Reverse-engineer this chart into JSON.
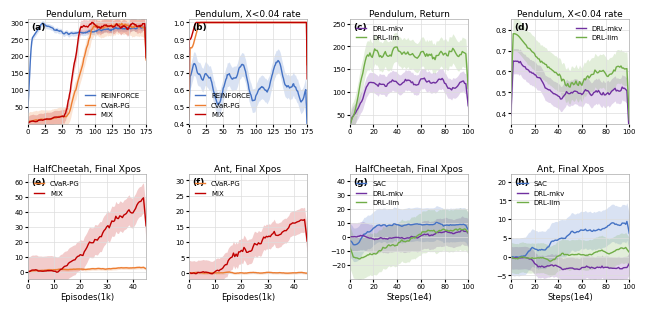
{
  "panels": {
    "a": {
      "title": "Pendulum, Return",
      "label": "(a)",
      "xlabel": "",
      "xlim": [
        0,
        175
      ],
      "ylim": [
        0,
        310
      ],
      "yticks": [
        50,
        100,
        150,
        200,
        250,
        300
      ],
      "xticks": [
        0,
        25,
        50,
        75,
        100,
        125,
        150,
        175
      ]
    },
    "b": {
      "title": "Pendulum, X<0.04 rate",
      "label": "(b)",
      "xlabel": "",
      "xlim": [
        0,
        175
      ],
      "ylim": [
        0.4,
        1.02
      ],
      "yticks": [
        0.4,
        0.5,
        0.6,
        0.7,
        0.8,
        0.9,
        1.0
      ],
      "xticks": [
        0,
        25,
        50,
        75,
        100,
        125,
        150,
        175
      ]
    },
    "c": {
      "title": "Pendulum, Return",
      "label": "(c)",
      "xlabel": "",
      "xlim": [
        0,
        100
      ],
      "ylim": [
        30,
        260
      ],
      "yticks": [
        50,
        100,
        150,
        200,
        250
      ],
      "xticks": [
        0,
        20,
        40,
        60,
        80,
        100
      ]
    },
    "d": {
      "title": "Pendulum, X<0.04 rate",
      "label": "(d)",
      "xlabel": "",
      "xlim": [
        0,
        100
      ],
      "ylim": [
        0.35,
        0.85
      ],
      "yticks": [
        0.4,
        0.5,
        0.6,
        0.7,
        0.8
      ],
      "xticks": [
        0,
        20,
        40,
        60,
        80,
        100
      ]
    },
    "e": {
      "title": "HalfCheetah, Final Xpos",
      "label": "(e)",
      "xlabel": "Episodes(1k)",
      "xlim": [
        0,
        45
      ],
      "ylim": [
        -5,
        65
      ],
      "yticks": [
        0,
        10,
        20,
        30,
        40,
        50,
        60
      ],
      "xticks": [
        0,
        10,
        20,
        30,
        40
      ]
    },
    "f": {
      "title": "Ant, Final Xpos",
      "label": "(f)",
      "xlabel": "Episodes(1k)",
      "xlim": [
        0,
        45
      ],
      "ylim": [
        -2,
        32
      ],
      "yticks": [
        0,
        5,
        10,
        15,
        20,
        25,
        30
      ],
      "xticks": [
        0,
        10,
        20,
        30,
        40
      ]
    },
    "g": {
      "title": "HalfCheetah, Final Xpos",
      "label": "(g)",
      "xlabel": "Steps(1e4)",
      "xlim": [
        0,
        100
      ],
      "ylim": [
        -30,
        45
      ],
      "yticks": [
        -20,
        -10,
        0,
        10,
        20,
        30,
        40
      ],
      "xticks": [
        0,
        20,
        40,
        60,
        80,
        100
      ]
    },
    "h": {
      "title": "Ant, Final Xpos",
      "label": "(h)",
      "xlabel": "Steps(1e4)",
      "xlim": [
        0,
        100
      ],
      "ylim": [
        -6,
        22
      ],
      "yticks": [
        -5,
        0,
        5,
        10,
        15,
        20
      ],
      "xticks": [
        0,
        20,
        40,
        60,
        80,
        100
      ]
    }
  },
  "colors": {
    "REINFORCE": "#4472C4",
    "CVaR-PG": "#ED7D31",
    "MIX": "#C00000",
    "DRL-mkv": "#7030A0",
    "DRL-lim": "#70AD47",
    "SAC": "#4472C4"
  },
  "alpha_fill": 0.2
}
